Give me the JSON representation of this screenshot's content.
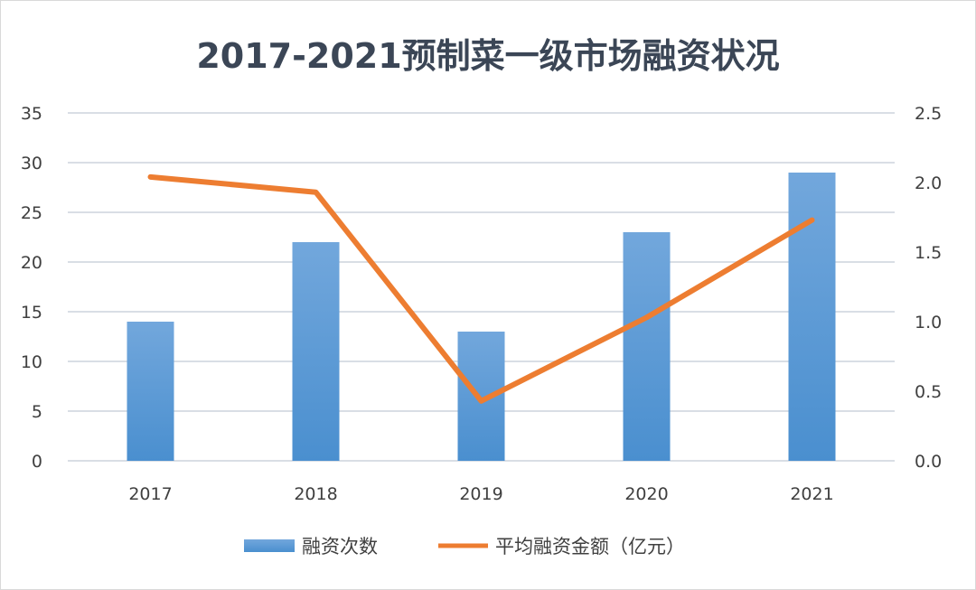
{
  "chart_data": {
    "type": "bar+line",
    "title": "2017-2021预制菜一级市场融资状况",
    "categories": [
      "2017",
      "2018",
      "2019",
      "2020",
      "2021"
    ],
    "series": [
      {
        "name": "融资次数",
        "type": "bar",
        "axis": "left",
        "values": [
          14,
          22,
          13,
          23,
          29
        ],
        "color": "#5b9bd5"
      },
      {
        "name": "平均融资金额（亿元）",
        "type": "line",
        "axis": "right",
        "values": [
          2.04,
          1.93,
          0.43,
          1.03,
          1.73
        ],
        "color": "#ed7d31"
      }
    ],
    "left_axis": {
      "ylim": [
        0,
        35
      ],
      "ticks": [
        "0",
        "5",
        "10",
        "15",
        "20",
        "25",
        "30",
        "35"
      ]
    },
    "right_axis": {
      "ylim": [
        0,
        2.5
      ],
      "ticks": [
        "0.0",
        "0.5",
        "1.0",
        "1.5",
        "2.0",
        "2.5"
      ]
    },
    "grid": true,
    "legend": "bottom"
  }
}
